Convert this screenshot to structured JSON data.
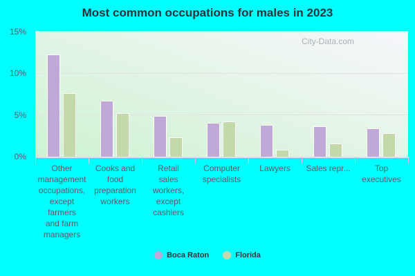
{
  "chart_data": {
    "type": "bar",
    "title": "Most common occupations for males in 2023",
    "xlabel": "",
    "ylabel": "",
    "ylim": [
      0,
      15
    ],
    "yticks": [
      "0%",
      "5%",
      "10%",
      "15%"
    ],
    "grid": true,
    "legend_position": "bottom",
    "categories": [
      "Other management occupations, except farmers and farm managers",
      "Cooks and food preparation workers",
      "Retail sales workers, except cashiers",
      "Computer specialists",
      "Lawyers",
      "Sales repr...",
      "Top executives"
    ],
    "series": [
      {
        "name": "Boca Raton",
        "color": "#bea9d9",
        "values": [
          12.2,
          6.7,
          4.9,
          4.0,
          3.8,
          3.6,
          3.4
        ]
      },
      {
        "name": "Florida",
        "color": "#c4d9a9",
        "values": [
          7.6,
          5.2,
          2.3,
          4.2,
          0.8,
          1.6,
          2.8
        ]
      }
    ],
    "annotations": [
      "City-Data.com"
    ]
  },
  "labels": {
    "title": "Most common occupations for males in 2023",
    "watermark": "City-Data.com",
    "yticks": [
      "15%",
      "10%",
      "5%",
      "0%"
    ],
    "xlabels": [
      [
        "Other",
        "management",
        "occupations,",
        "except",
        "farmers",
        "and farm",
        "managers"
      ],
      [
        "Cooks and",
        "food",
        "preparation",
        "workers"
      ],
      [
        "Retail",
        "sales",
        "workers,",
        "except",
        "cashiers"
      ],
      [
        "Computer",
        "specialists"
      ],
      [
        "Lawyers"
      ],
      [
        "Sales repr..."
      ],
      [
        "Top",
        "executives"
      ]
    ],
    "legend": [
      "Boca Raton",
      "Florida"
    ]
  }
}
